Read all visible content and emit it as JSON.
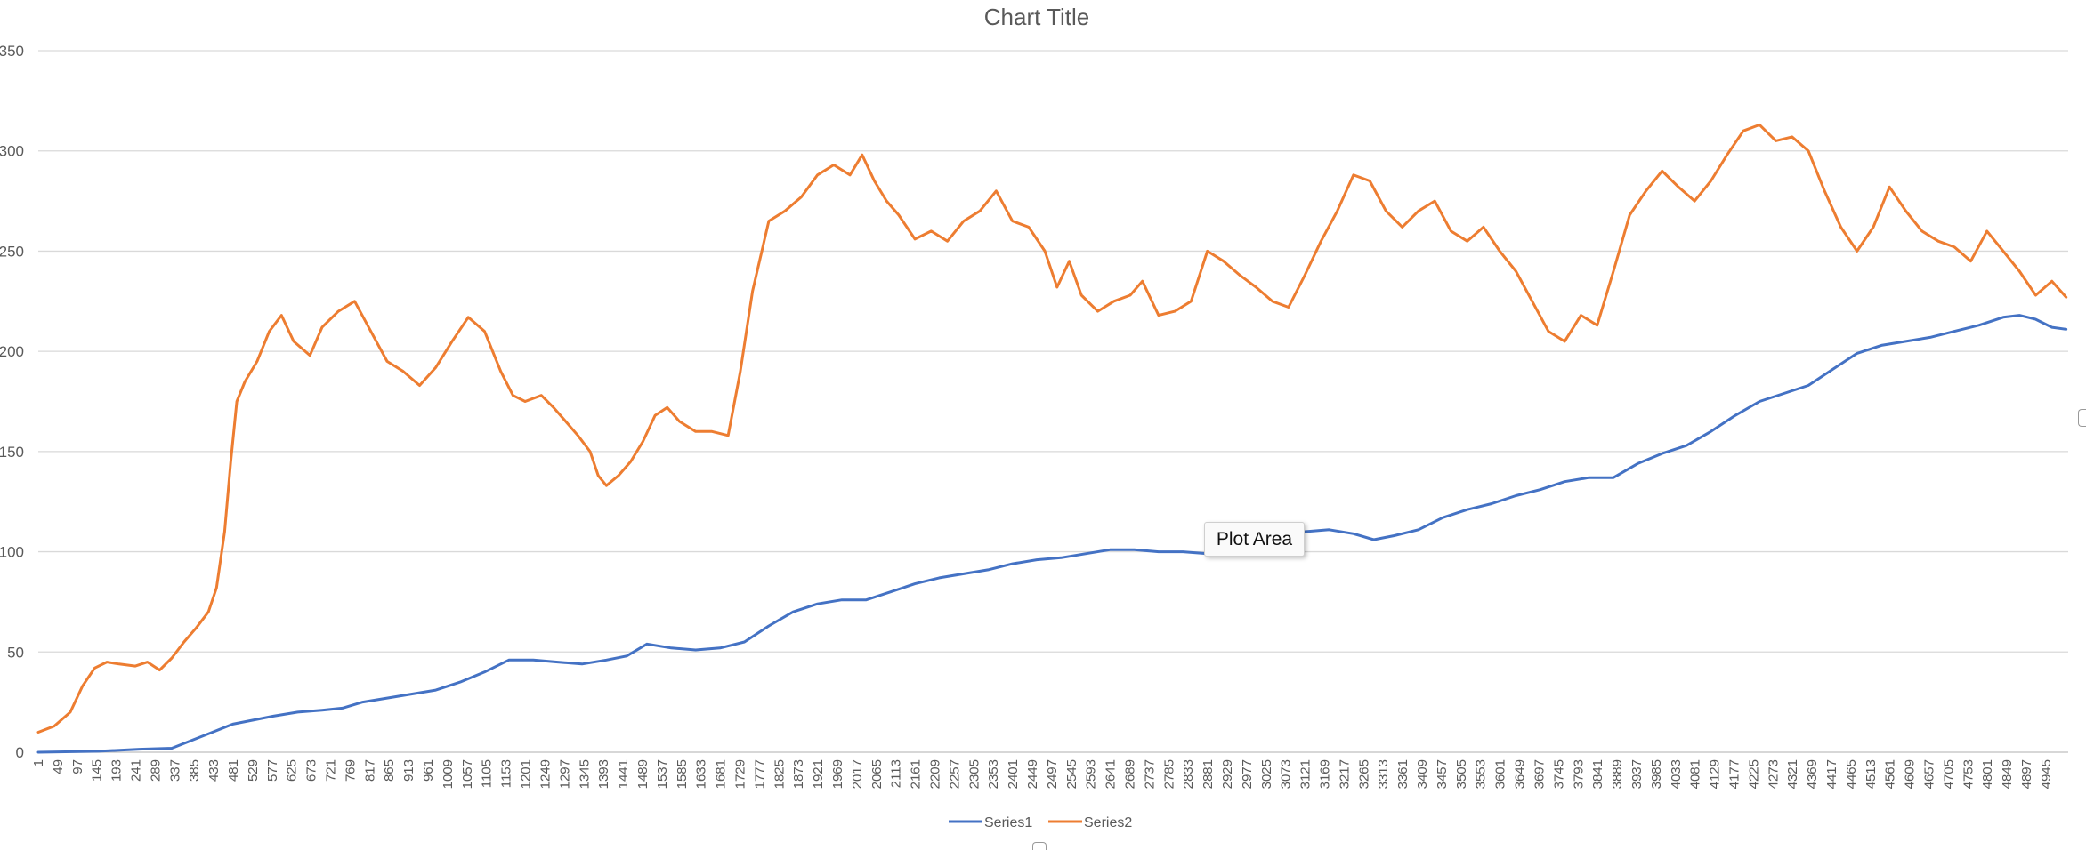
{
  "chart_data": {
    "type": "line",
    "title": "Chart Title",
    "xlabel": "",
    "ylabel": "",
    "x_range": [
      1,
      5000
    ],
    "ylim": [
      0,
      350
    ],
    "y_ticks": [
      "0",
      "50",
      "100",
      "150",
      "200",
      "250",
      "300",
      "350"
    ],
    "x_ticks": [
      "1",
      "49",
      "97",
      "145",
      "193",
      "241",
      "289",
      "337",
      "385",
      "433",
      "481",
      "529",
      "577",
      "625",
      "673",
      "721",
      "769",
      "817",
      "865",
      "913",
      "961",
      "1009",
      "1057",
      "1105",
      "1153",
      "1201",
      "1249",
      "1297",
      "1345",
      "1393",
      "1441",
      "1489",
      "1537",
      "1585",
      "1633",
      "1681",
      "1729",
      "1777",
      "1825",
      "1873",
      "1921",
      "1969",
      "2017",
      "2065",
      "2113",
      "2161",
      "2209",
      "2257",
      "2305",
      "2353",
      "2401",
      "2449",
      "2497",
      "2545",
      "2593",
      "2641",
      "2689",
      "2737",
      "2785",
      "2833",
      "2881",
      "2929",
      "2977",
      "3025",
      "3073",
      "3121",
      "3169",
      "3217",
      "3265",
      "3313",
      "3361",
      "3409",
      "3457",
      "3505",
      "3553",
      "3601",
      "3649",
      "3697",
      "3745",
      "3793",
      "3841",
      "3889",
      "3937",
      "3985",
      "4033",
      "4081",
      "4129",
      "4177",
      "4225",
      "4273",
      "4321",
      "4369",
      "4417",
      "4465",
      "4513",
      "4561",
      "4609",
      "4657",
      "4705",
      "4753",
      "4801",
      "4849",
      "4897",
      "4945"
    ],
    "grid": true,
    "legend_position": "bottom",
    "series": [
      {
        "name": "Series1",
        "color": "#4472C4",
        "points": [
          [
            1,
            0
          ],
          [
            150,
            0.5
          ],
          [
            250,
            1.5
          ],
          [
            330,
            2
          ],
          [
            380,
            6
          ],
          [
            430,
            10
          ],
          [
            480,
            14
          ],
          [
            530,
            16
          ],
          [
            580,
            18
          ],
          [
            640,
            20
          ],
          [
            700,
            21
          ],
          [
            750,
            22
          ],
          [
            800,
            25
          ],
          [
            860,
            27
          ],
          [
            920,
            29
          ],
          [
            980,
            31
          ],
          [
            1040,
            35
          ],
          [
            1100,
            40
          ],
          [
            1160,
            46
          ],
          [
            1220,
            46
          ],
          [
            1280,
            45
          ],
          [
            1340,
            44
          ],
          [
            1400,
            46
          ],
          [
            1450,
            48
          ],
          [
            1500,
            54
          ],
          [
            1560,
            52
          ],
          [
            1620,
            51
          ],
          [
            1680,
            52
          ],
          [
            1740,
            55
          ],
          [
            1800,
            63
          ],
          [
            1860,
            70
          ],
          [
            1920,
            74
          ],
          [
            1980,
            76
          ],
          [
            2040,
            76
          ],
          [
            2100,
            80
          ],
          [
            2160,
            84
          ],
          [
            2220,
            87
          ],
          [
            2280,
            89
          ],
          [
            2340,
            91
          ],
          [
            2400,
            94
          ],
          [
            2460,
            96
          ],
          [
            2520,
            97
          ],
          [
            2580,
            99
          ],
          [
            2640,
            101
          ],
          [
            2700,
            101
          ],
          [
            2760,
            100
          ],
          [
            2820,
            100
          ],
          [
            2880,
            99
          ],
          [
            2940,
            99
          ],
          [
            3000,
            104
          ],
          [
            3060,
            108
          ],
          [
            3120,
            110
          ],
          [
            3180,
            111
          ],
          [
            3240,
            109
          ],
          [
            3290,
            106
          ],
          [
            3340,
            108
          ],
          [
            3400,
            111
          ],
          [
            3460,
            117
          ],
          [
            3520,
            121
          ],
          [
            3580,
            124
          ],
          [
            3640,
            128
          ],
          [
            3700,
            131
          ],
          [
            3760,
            135
          ],
          [
            3820,
            137
          ],
          [
            3880,
            137
          ],
          [
            3940,
            144
          ],
          [
            4000,
            149
          ],
          [
            4060,
            153
          ],
          [
            4120,
            160
          ],
          [
            4180,
            168
          ],
          [
            4240,
            175
          ],
          [
            4300,
            179
          ],
          [
            4360,
            183
          ],
          [
            4420,
            191
          ],
          [
            4480,
            199
          ],
          [
            4540,
            203
          ],
          [
            4600,
            205
          ],
          [
            4660,
            207
          ],
          [
            4720,
            210
          ],
          [
            4780,
            213
          ],
          [
            4840,
            217
          ],
          [
            4880,
            218
          ],
          [
            4920,
            216
          ],
          [
            4960,
            212
          ],
          [
            4995,
            211
          ]
        ]
      },
      {
        "name": "Series2",
        "color": "#ED7D31",
        "points": [
          [
            1,
            10
          ],
          [
            40,
            13
          ],
          [
            80,
            20
          ],
          [
            110,
            33
          ],
          [
            140,
            42
          ],
          [
            170,
            45
          ],
          [
            200,
            44
          ],
          [
            240,
            43
          ],
          [
            270,
            45
          ],
          [
            300,
            41
          ],
          [
            330,
            47
          ],
          [
            360,
            55
          ],
          [
            390,
            62
          ],
          [
            420,
            70
          ],
          [
            440,
            82
          ],
          [
            460,
            110
          ],
          [
            475,
            145
          ],
          [
            490,
            175
          ],
          [
            510,
            185
          ],
          [
            540,
            195
          ],
          [
            570,
            210
          ],
          [
            600,
            218
          ],
          [
            630,
            205
          ],
          [
            670,
            198
          ],
          [
            700,
            212
          ],
          [
            740,
            220
          ],
          [
            780,
            225
          ],
          [
            820,
            210
          ],
          [
            860,
            195
          ],
          [
            900,
            190
          ],
          [
            940,
            183
          ],
          [
            980,
            192
          ],
          [
            1020,
            205
          ],
          [
            1060,
            217
          ],
          [
            1100,
            210
          ],
          [
            1140,
            190
          ],
          [
            1170,
            178
          ],
          [
            1200,
            175
          ],
          [
            1240,
            178
          ],
          [
            1270,
            172
          ],
          [
            1300,
            165
          ],
          [
            1330,
            158
          ],
          [
            1360,
            150
          ],
          [
            1380,
            138
          ],
          [
            1400,
            133
          ],
          [
            1430,
            138
          ],
          [
            1460,
            145
          ],
          [
            1490,
            155
          ],
          [
            1520,
            168
          ],
          [
            1550,
            172
          ],
          [
            1580,
            165
          ],
          [
            1620,
            160
          ],
          [
            1660,
            160
          ],
          [
            1700,
            158
          ],
          [
            1730,
            190
          ],
          [
            1760,
            230
          ],
          [
            1800,
            265
          ],
          [
            1840,
            270
          ],
          [
            1880,
            277
          ],
          [
            1920,
            288
          ],
          [
            1960,
            293
          ],
          [
            2000,
            288
          ],
          [
            2030,
            298
          ],
          [
            2060,
            285
          ],
          [
            2090,
            275
          ],
          [
            2120,
            268
          ],
          [
            2160,
            256
          ],
          [
            2200,
            260
          ],
          [
            2240,
            255
          ],
          [
            2280,
            265
          ],
          [
            2320,
            270
          ],
          [
            2360,
            280
          ],
          [
            2400,
            265
          ],
          [
            2440,
            262
          ],
          [
            2480,
            250
          ],
          [
            2510,
            232
          ],
          [
            2540,
            245
          ],
          [
            2570,
            228
          ],
          [
            2610,
            220
          ],
          [
            2650,
            225
          ],
          [
            2690,
            228
          ],
          [
            2720,
            235
          ],
          [
            2760,
            218
          ],
          [
            2800,
            220
          ],
          [
            2840,
            225
          ],
          [
            2880,
            250
          ],
          [
            2920,
            245
          ],
          [
            2960,
            238
          ],
          [
            3000,
            232
          ],
          [
            3040,
            225
          ],
          [
            3080,
            222
          ],
          [
            3120,
            238
          ],
          [
            3160,
            255
          ],
          [
            3200,
            270
          ],
          [
            3240,
            288
          ],
          [
            3280,
            285
          ],
          [
            3320,
            270
          ],
          [
            3360,
            262
          ],
          [
            3400,
            270
          ],
          [
            3440,
            275
          ],
          [
            3480,
            260
          ],
          [
            3520,
            255
          ],
          [
            3560,
            262
          ],
          [
            3600,
            250
          ],
          [
            3640,
            240
          ],
          [
            3680,
            225
          ],
          [
            3720,
            210
          ],
          [
            3760,
            205
          ],
          [
            3800,
            218
          ],
          [
            3840,
            213
          ],
          [
            3880,
            240
          ],
          [
            3920,
            268
          ],
          [
            3960,
            280
          ],
          [
            4000,
            290
          ],
          [
            4040,
            282
          ],
          [
            4080,
            275
          ],
          [
            4120,
            285
          ],
          [
            4160,
            298
          ],
          [
            4200,
            310
          ],
          [
            4240,
            313
          ],
          [
            4280,
            305
          ],
          [
            4320,
            307
          ],
          [
            4360,
            300
          ],
          [
            4400,
            280
          ],
          [
            4440,
            262
          ],
          [
            4480,
            250
          ],
          [
            4520,
            262
          ],
          [
            4560,
            282
          ],
          [
            4600,
            270
          ],
          [
            4640,
            260
          ],
          [
            4680,
            255
          ],
          [
            4720,
            252
          ],
          [
            4760,
            245
          ],
          [
            4800,
            260
          ],
          [
            4840,
            250
          ],
          [
            4880,
            240
          ],
          [
            4920,
            228
          ],
          [
            4960,
            235
          ],
          [
            4995,
            227
          ]
        ]
      }
    ]
  },
  "tooltip": {
    "text": "Plot Area"
  }
}
